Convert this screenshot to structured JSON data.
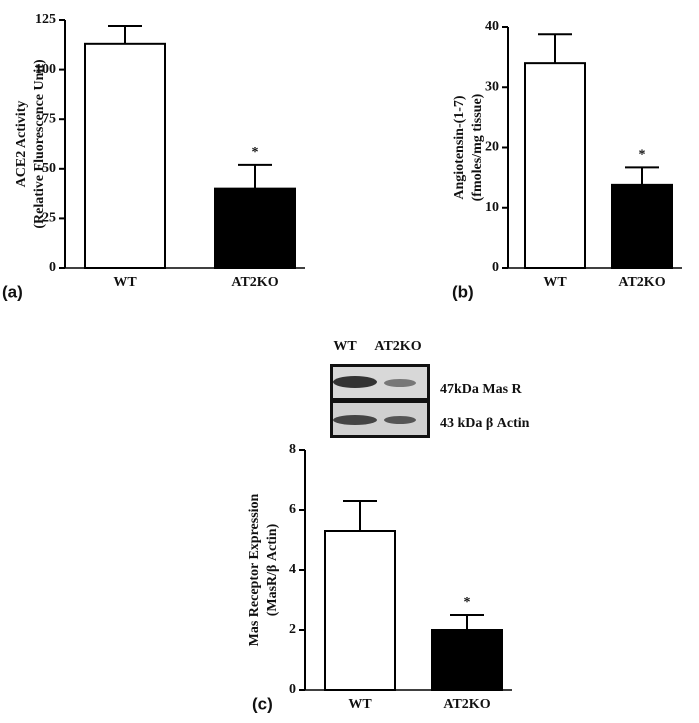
{
  "chart_data": [
    {
      "type": "bar",
      "panel": "(a)",
      "ylabel": [
        "ACE2 Activity",
        "(Relative Fluorescence Unit)"
      ],
      "categories": [
        "WT",
        "AT2KO"
      ],
      "values": [
        113,
        40
      ],
      "errors": [
        9,
        12
      ],
      "significance": [
        null,
        "*"
      ],
      "colors": [
        "#ffffff",
        "#000000"
      ],
      "ylim": [
        0,
        125
      ],
      "yticks": [
        0,
        25,
        50,
        75,
        100,
        125
      ]
    },
    {
      "type": "bar",
      "panel": "(b)",
      "ylabel": [
        "Angiotensin-(1-7)",
        "(fmoles/mg tissue)"
      ],
      "categories": [
        "WT",
        "AT2KO"
      ],
      "values": [
        34,
        13.8
      ],
      "errors": [
        4.8,
        2.9
      ],
      "significance": [
        null,
        "*"
      ],
      "colors": [
        "#ffffff",
        "#000000"
      ],
      "ylim": [
        0,
        40
      ],
      "yticks": [
        0,
        10,
        20,
        30,
        40
      ]
    },
    {
      "type": "bar",
      "panel": "(c)",
      "ylabel": [
        "Mas Receptor Expression",
        "(MasR/β Actin)"
      ],
      "categories": [
        "WT",
        "AT2KO"
      ],
      "values": [
        5.3,
        2.0
      ],
      "errors": [
        1.0,
        0.5
      ],
      "significance": [
        null,
        "*"
      ],
      "colors": [
        "#ffffff",
        "#000000"
      ],
      "ylim": [
        0,
        8
      ],
      "yticks": [
        0,
        2,
        4,
        6,
        8
      ],
      "blot": {
        "lanes": [
          "WT",
          "AT2KO"
        ],
        "bands": [
          "47kDa Mas R",
          "43 kDa β Actin"
        ]
      }
    }
  ]
}
